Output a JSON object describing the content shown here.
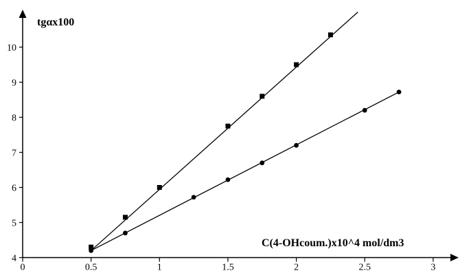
{
  "chart_data": {
    "type": "line",
    "title": "",
    "xlabel": "C(4-OHcoum.)x10^4 mol/dm3",
    "ylabel": "tgαx100",
    "xlim": [
      0,
      3
    ],
    "ylim": [
      4,
      10.5
    ],
    "x_ticks": [
      "0",
      "0.5",
      "1",
      "1.5",
      "2",
      "2.5",
      "3"
    ],
    "y_ticks": [
      "4",
      "5",
      "6",
      "7",
      "8",
      "9",
      "10"
    ],
    "grid": false,
    "legend": "none",
    "series": [
      {
        "marker": "square",
        "x": [
          0.5,
          0.75,
          1.0,
          1.5,
          1.75,
          2.0,
          2.25
        ],
        "y": [
          4.3,
          5.15,
          6.0,
          7.75,
          8.6,
          9.5,
          10.35
        ],
        "fit_line": {
          "x": [
            0.5,
            2.45
          ],
          "y": [
            4.2,
            11.0
          ]
        }
      },
      {
        "marker": "circle",
        "x": [
          0.5,
          0.75,
          1.25,
          1.5,
          1.75,
          2.0,
          2.5,
          2.75
        ],
        "y": [
          4.2,
          4.7,
          5.72,
          6.22,
          6.7,
          7.2,
          8.2,
          8.72
        ],
        "fit_line": {
          "x": [
            0.5,
            2.75
          ],
          "y": [
            4.2,
            8.72
          ]
        }
      }
    ]
  }
}
